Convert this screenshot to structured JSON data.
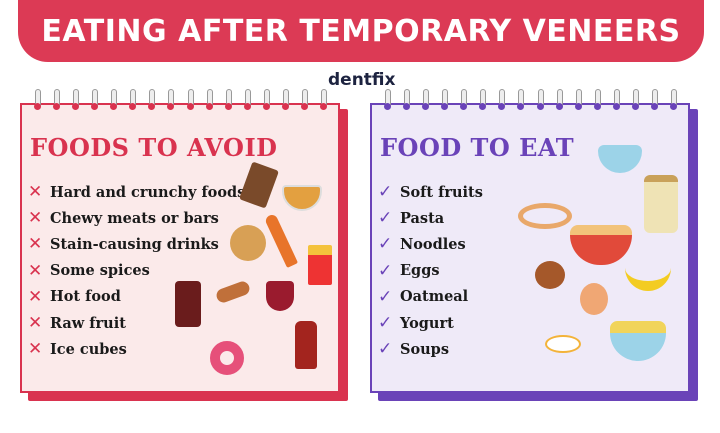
{
  "title": "EATING AFTER TEMPORARY VENEERS",
  "logo": "dentfix",
  "colors": {
    "banner": "#dc3a55",
    "avoid": "#d9334f",
    "eat": "#6a43b8"
  },
  "avoid": {
    "heading": "FOODS TO AVOID",
    "icon": "x-mark-icon",
    "items": [
      "Hard and crunchy foods",
      "Chewy meats or bars",
      "Stain-causing drinks",
      "Some spices",
      "Hot food",
      "Raw fruit",
      "Ice cubes"
    ]
  },
  "eat": {
    "heading": "FOOD TO EAT",
    "icon": "check-mark-icon",
    "items": [
      "Soft fruits",
      "Pasta",
      "Noodles",
      "Eggs",
      "Oatmeal",
      "Yogurt",
      "Soups"
    ]
  }
}
